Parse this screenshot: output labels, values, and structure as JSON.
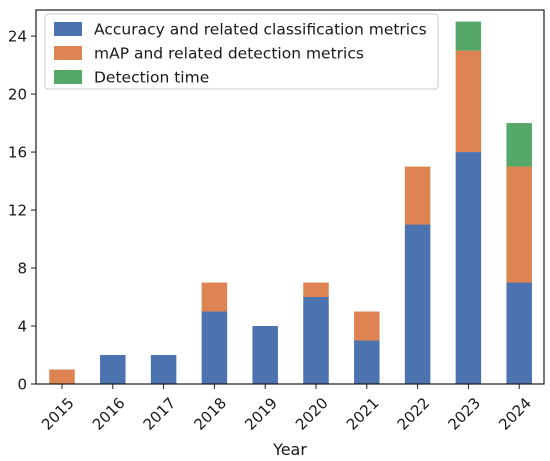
{
  "chart_data": {
    "type": "bar",
    "stacked": true,
    "xlabel": "Year",
    "ylabel": "",
    "ylim": [
      0,
      25.8
    ],
    "yticks": [
      0,
      4,
      8,
      12,
      16,
      20,
      24
    ],
    "grid": false,
    "legend_position": "top-left",
    "categories": [
      "2015",
      "2016",
      "2017",
      "2018",
      "2019",
      "2020",
      "2021",
      "2022",
      "2023",
      "2024"
    ],
    "series": [
      {
        "name": "Accuracy and related classification metrics",
        "color": "#4c72b0",
        "values": [
          0,
          2,
          2,
          5,
          4,
          6,
          3,
          11,
          16,
          7
        ]
      },
      {
        "name": "mAP and related detection metrics",
        "color": "#dd8452",
        "values": [
          1,
          0,
          0,
          2,
          0,
          1,
          2,
          4,
          7,
          8
        ]
      },
      {
        "name": "Detection time",
        "color": "#55a868",
        "values": [
          0,
          0,
          0,
          0,
          0,
          0,
          0,
          0,
          2,
          3
        ]
      }
    ]
  }
}
